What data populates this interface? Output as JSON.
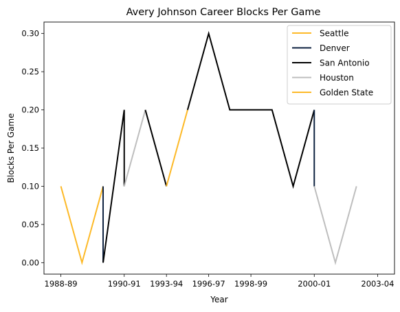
{
  "chart_data": {
    "type": "line",
    "title": "Avery Johnson Career Blocks Per Game",
    "xlabel": "Year",
    "ylabel": "Blocks Per Game",
    "x_tick_labels": [
      "1988-89",
      "1990-91",
      "1993-94",
      "1996-97",
      "1998-99",
      "2000-01",
      "2003-04"
    ],
    "x_tick_positions": [
      0,
      3,
      5,
      7,
      9,
      12,
      15
    ],
    "y_tick_labels": [
      "0.00",
      "0.05",
      "0.10",
      "0.15",
      "0.20",
      "0.25",
      "0.30"
    ],
    "xlim": [
      -0.8,
      15.8
    ],
    "ylim": [
      -0.015,
      0.315
    ],
    "grid": false,
    "legend_position": "top-right",
    "series": [
      {
        "name": "Seattle",
        "color": "#FDB927",
        "x": [
          0,
          1,
          2
        ],
        "y": [
          0.1,
          0.0,
          0.1
        ]
      },
      {
        "name": "Denver",
        "color": "#0E2240",
        "x": [
          2,
          2
        ],
        "y": [
          0.1,
          0.0
        ]
      },
      {
        "name": "San Antonio",
        "color": "#000000",
        "x": [
          2,
          3,
          3
        ],
        "y": [
          0.0,
          0.2,
          0.1
        ]
      },
      {
        "name": "Houston",
        "color": "#BEBEBE",
        "x": [
          3,
          4
        ],
        "y": [
          0.1,
          0.2
        ]
      },
      {
        "name": "San Antonio",
        "color": "#000000",
        "x": [
          4,
          5
        ],
        "y": [
          0.2,
          0.1
        ]
      },
      {
        "name": "Golden State",
        "color": "#FDB927",
        "x": [
          5,
          6
        ],
        "y": [
          0.1,
          0.2
        ]
      },
      {
        "name": "San Antonio",
        "color": "#000000",
        "x": [
          6,
          7,
          8,
          9,
          10,
          11,
          12
        ],
        "y": [
          0.2,
          0.3,
          0.2,
          0.2,
          0.2,
          0.1,
          0.2
        ]
      },
      {
        "name": "Denver",
        "color": "#0E2240",
        "x": [
          12,
          12
        ],
        "y": [
          0.2,
          0.1
        ]
      },
      {
        "name": "Houston",
        "color": "#BEBEBE",
        "x": [
          12,
          13,
          14
        ],
        "y": [
          0.1,
          0.0,
          0.1
        ]
      }
    ],
    "legend": [
      {
        "label": "Seattle",
        "color": "#FDB927"
      },
      {
        "label": "Denver",
        "color": "#0E2240"
      },
      {
        "label": "San Antonio",
        "color": "#000000"
      },
      {
        "label": "Houston",
        "color": "#BEBEBE"
      },
      {
        "label": "Golden State",
        "color": "#FDB927"
      }
    ]
  }
}
